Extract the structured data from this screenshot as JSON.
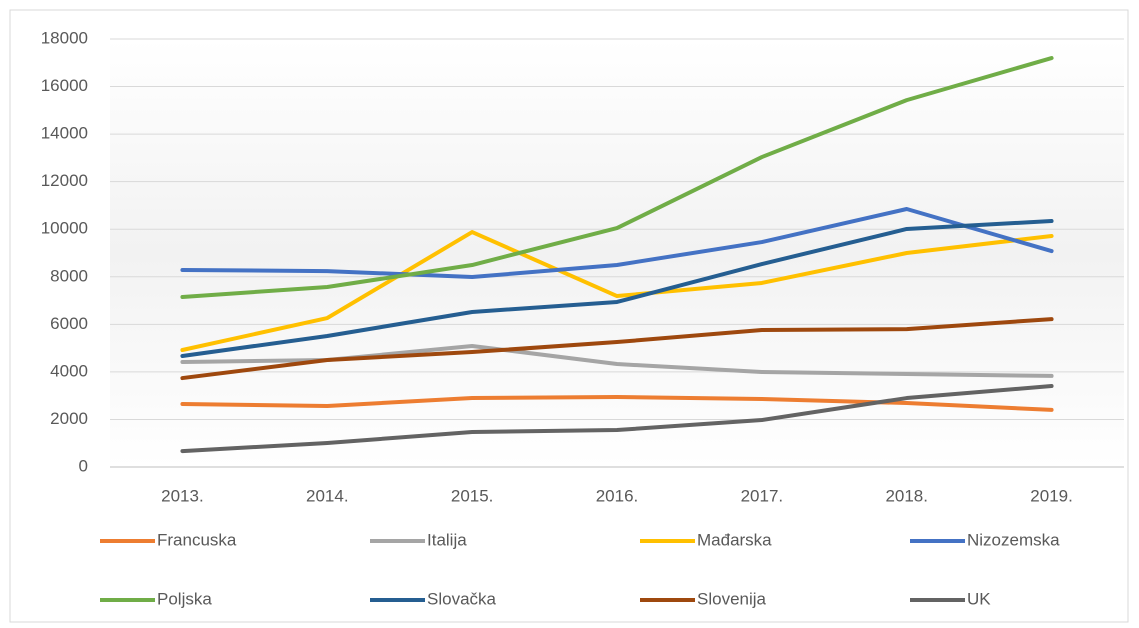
{
  "chart_data": {
    "type": "line",
    "categories": [
      "2013.",
      "2014.",
      "2015.",
      "2016.",
      "2017.",
      "2018.",
      "2019."
    ],
    "series": [
      {
        "name": "Francuska",
        "color": "#ed7d31",
        "values": [
          2650,
          2565,
          2900,
          2945,
          2860,
          2690,
          2400
        ]
      },
      {
        "name": "Italija",
        "color": "#a5a5a5",
        "values": [
          4415,
          4500,
          5090,
          4330,
          3995,
          3910,
          3830
        ]
      },
      {
        "name": "Mađarska",
        "color": "#ffc000",
        "values": [
          4920,
          6265,
          9880,
          7190,
          7740,
          9000,
          9715
        ]
      },
      {
        "name": "Nizozemska",
        "color": "#4472c4",
        "values": [
          8285,
          8240,
          7990,
          8495,
          9460,
          10850,
          9080
        ]
      },
      {
        "name": "Poljska",
        "color": "#70ad47",
        "values": [
          7150,
          7570,
          8495,
          10050,
          13035,
          15430,
          17200
        ]
      },
      {
        "name": "Slovačka",
        "color": "#255e91",
        "values": [
          4670,
          5510,
          6520,
          6940,
          8535,
          10010,
          10345
        ]
      },
      {
        "name": "Slovenija",
        "color": "#9e480e",
        "values": [
          3740,
          4500,
          4835,
          5255,
          5760,
          5800,
          6220
        ]
      },
      {
        "name": "UK",
        "color": "#636363",
        "values": [
          670,
          1010,
          1470,
          1555,
          1975,
          2900,
          3405
        ]
      }
    ],
    "ylim": [
      0,
      18000
    ],
    "yticks": [
      0,
      2000,
      4000,
      6000,
      8000,
      10000,
      12000,
      14000,
      16000,
      18000
    ],
    "grid": true,
    "legend": "bottom"
  }
}
